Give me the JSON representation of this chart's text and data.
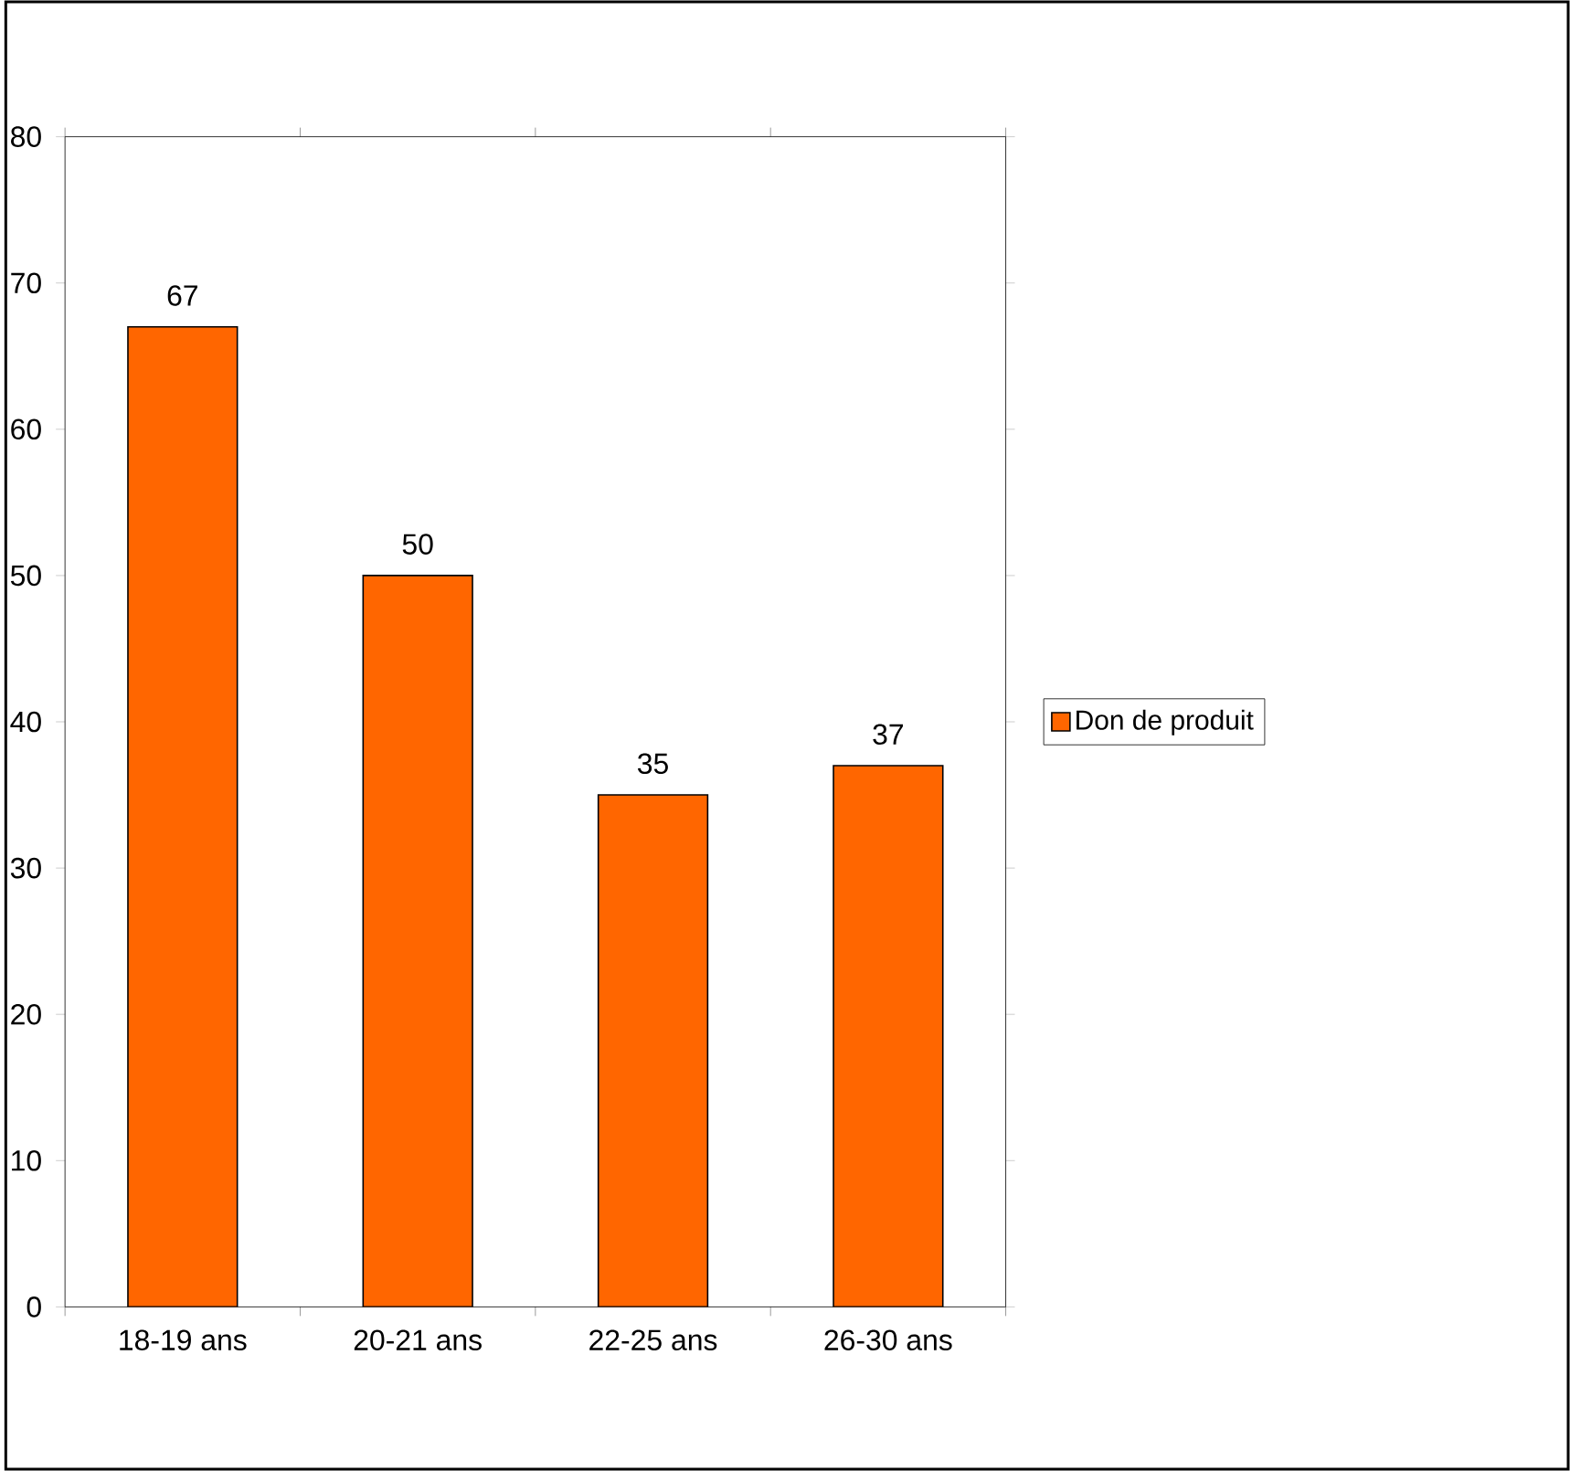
{
  "chart_data": {
    "type": "bar",
    "categories": [
      "18-19 ans",
      "20-21 ans",
      "22-25 ans",
      "26-30 ans"
    ],
    "series": [
      {
        "name": "Don de produit",
        "color": "#ff6600",
        "values": [
          67,
          50,
          35,
          37
        ]
      }
    ],
    "ylim": [
      0,
      80
    ],
    "yticks": [
      0,
      10,
      20,
      30,
      40,
      50,
      60,
      70,
      80
    ],
    "data_labels": true,
    "legend": "right",
    "grid": false
  }
}
